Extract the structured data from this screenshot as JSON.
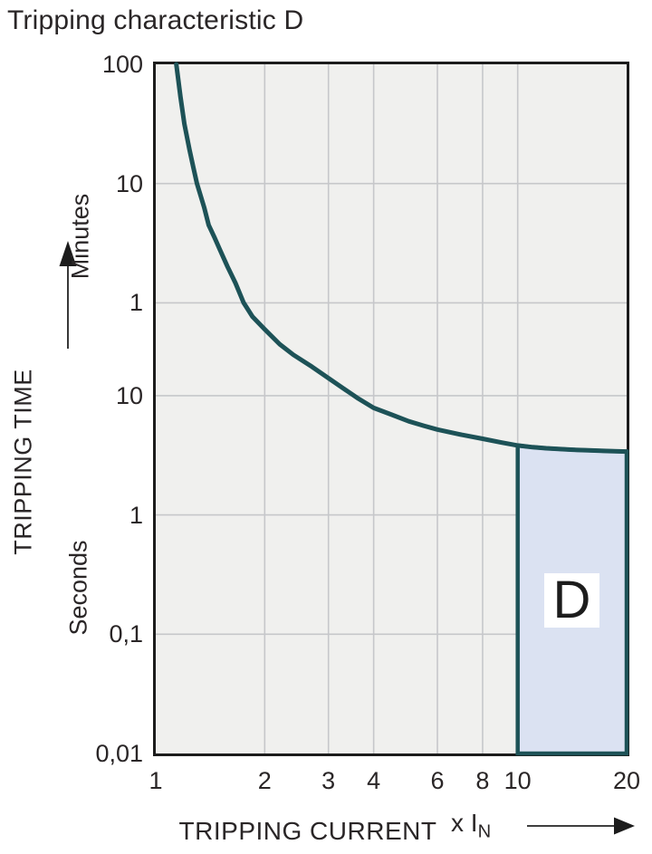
{
  "title": "Tripping characteristic D",
  "chart_data": {
    "type": "line",
    "title": "Tripping characteristic D",
    "x_axis": {
      "label": "TRIPPING CURRENT",
      "unit_prefix": "x I",
      "unit_sub": "N",
      "scale": "log",
      "range": [
        1,
        20
      ],
      "ticks": [
        {
          "label": "1",
          "value": 1
        },
        {
          "label": "2",
          "value": 2
        },
        {
          "label": "3",
          "value": 3
        },
        {
          "label": "4",
          "value": 4
        },
        {
          "label": "6",
          "value": 6
        },
        {
          "label": "8",
          "value": 8
        },
        {
          "label": "10",
          "value": 10
        },
        {
          "label": "20",
          "value": 20
        }
      ],
      "gridlines": [
        2,
        3,
        4,
        6,
        8,
        10
      ]
    },
    "y_axis": {
      "label": "TRIPPING TIME",
      "units": [
        "Minutes",
        "Seconds"
      ],
      "scale": "log",
      "range_seconds": [
        0.01,
        6000
      ],
      "ticks": [
        {
          "label": "100",
          "seconds": 6000
        },
        {
          "label": "10",
          "seconds": 600
        },
        {
          "label": "1",
          "seconds": 60
        },
        {
          "label": "10",
          "seconds": 10
        },
        {
          "label": "1",
          "seconds": 1
        },
        {
          "label": "0,1",
          "seconds": 0.1
        },
        {
          "label": "0,01",
          "seconds": 0.01
        }
      ],
      "gridlines_seconds": [
        600,
        60,
        10,
        1,
        0.1
      ]
    },
    "series": [
      {
        "name": "D tripping curve",
        "points": [
          [
            1.14,
            6000
          ],
          [
            1.17,
            3200
          ],
          [
            1.2,
            1900
          ],
          [
            1.24,
            1150
          ],
          [
            1.27,
            820
          ],
          [
            1.3,
            600
          ],
          [
            1.36,
            380
          ],
          [
            1.4,
            270
          ],
          [
            1.45,
            215
          ],
          [
            1.5,
            170
          ],
          [
            1.58,
            120
          ],
          [
            1.66,
            88
          ],
          [
            1.75,
            60
          ],
          [
            1.85,
            46
          ],
          [
            2.0,
            36
          ],
          [
            2.2,
            27
          ],
          [
            2.4,
            22
          ],
          [
            2.7,
            17.5
          ],
          [
            3.0,
            14
          ],
          [
            3.3,
            11.5
          ],
          [
            3.6,
            9.6
          ],
          [
            4.0,
            7.9
          ],
          [
            4.5,
            6.9
          ],
          [
            5.0,
            6.1
          ],
          [
            5.5,
            5.6
          ],
          [
            6.0,
            5.2
          ],
          [
            7.0,
            4.7
          ],
          [
            8.0,
            4.35
          ],
          [
            9.0,
            4.05
          ],
          [
            10.0,
            3.82
          ],
          [
            11,
            3.7
          ],
          [
            12,
            3.62
          ],
          [
            14,
            3.53
          ],
          [
            16,
            3.47
          ],
          [
            18,
            3.43
          ],
          [
            20,
            3.4
          ]
        ]
      }
    ],
    "region": {
      "label": "D",
      "x_range": [
        10,
        20
      ],
      "t_bottom": 0.01,
      "top": "curve"
    },
    "colors": {
      "curve": "#1d5257",
      "region_fill": "#dbe2f2",
      "plot_background": "#f0f0ee",
      "grid": "#c6c7ca",
      "frame": "#1c1c1c",
      "text": "#2a2627"
    }
  }
}
